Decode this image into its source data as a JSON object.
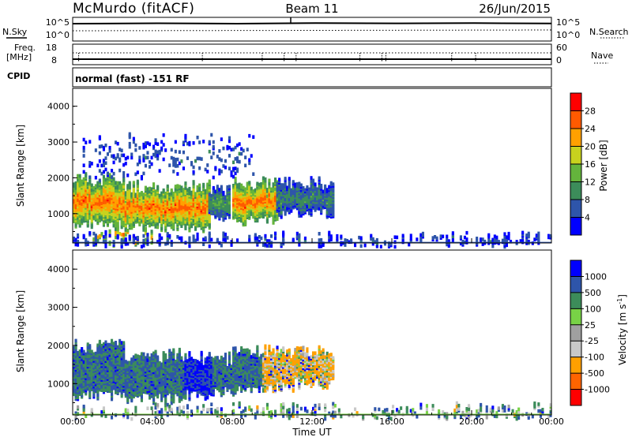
{
  "header": {
    "station": "McMurdo (fitACF)",
    "beam": "Beam 11",
    "date": "26/Jun/2015"
  },
  "strip_panels": {
    "nsky_label": "N.Sky",
    "nsky_ticks": [
      "10^5",
      "10^0"
    ],
    "nsearch_label": "N.Search",
    "nsearch_ticks": [
      "10^5",
      "10^0"
    ],
    "freq_label_1": "Freq.",
    "freq_label_2": "[MHz]",
    "freq_ticks": [
      "18",
      "8"
    ],
    "nave_label": "Nave",
    "nave_ticks": [
      "60",
      "0"
    ],
    "cpid_label": "CPID",
    "cpid_text": "normal (fast) -151 RF"
  },
  "colors": {
    "power_scale": [
      "#0000ff",
      "#2e55aa",
      "#3c8c5a",
      "#64b43c",
      "#c8d21e",
      "#ffa000",
      "#ff5a00",
      "#ff0000"
    ],
    "velocity_scale": [
      "#ff0000",
      "#ff6400",
      "#ffa000",
      "#c8c8c8",
      "#a0a0a0",
      "#78d246",
      "#3c8c5a",
      "#2e55aa",
      "#0000ff"
    ]
  },
  "chart_data": [
    {
      "type": "heatmap",
      "name": "power",
      "ylabel": "Slant Range [km]",
      "ylim": [
        180,
        4500
      ],
      "yticks": [
        "1000",
        "2000",
        "3000",
        "4000"
      ],
      "xlim": [
        0,
        24
      ],
      "xticks": [
        "00:00",
        "04:00",
        "08:00",
        "12:00",
        "16:00",
        "20:00",
        "00:00"
      ],
      "colorbar_label": "Power [dB]",
      "colorbar_ticks": [
        "4",
        "8",
        "12",
        "16",
        "20",
        "24",
        "28"
      ],
      "colorbar_range": [
        0,
        32
      ],
      "regions": [
        {
          "t": [
            0.0,
            2.6
          ],
          "r": [
            700,
            1900
          ],
          "level": 26
        },
        {
          "t": [
            2.6,
            6.8
          ],
          "r": [
            600,
            1700
          ],
          "level": 26
        },
        {
          "t": [
            6.8,
            7.8
          ],
          "r": [
            900,
            1600
          ],
          "level": 12
        },
        {
          "t": [
            8.0,
            10.2
          ],
          "r": [
            800,
            1800
          ],
          "level": 26
        },
        {
          "t": [
            10.2,
            13.0
          ],
          "r": [
            1000,
            1800
          ],
          "level": 10
        },
        {
          "t": [
            1.0,
            4.0
          ],
          "r": [
            200,
            400
          ],
          "level": 24
        },
        {
          "t": [
            0.0,
            24.0
          ],
          "r": [
            180,
            260
          ],
          "level": 6
        },
        {
          "t": [
            0.5,
            9.0
          ],
          "r": [
            2000,
            3100
          ],
          "level": 6
        }
      ]
    },
    {
      "type": "heatmap",
      "name": "velocity",
      "ylabel": "Slant Range [km]",
      "ylim": [
        180,
        4500
      ],
      "yticks": [
        "1000",
        "2000",
        "3000",
        "4000"
      ],
      "xlim": [
        0,
        24
      ],
      "xticks": [
        "00:00",
        "04:00",
        "08:00",
        "12:00",
        "16:00",
        "20:00",
        "00:00"
      ],
      "xlabel": "Time UT",
      "colorbar_label": "Velocity [m s",
      "colorbar_label_sup": "-1",
      "colorbar_label_end": "]",
      "colorbar_ticks": [
        "1000",
        "500",
        "100",
        "25",
        "-25",
        "-100",
        "-500",
        "-1000"
      ],
      "regions": [
        {
          "t": [
            0.0,
            2.6
          ],
          "r": [
            700,
            1950
          ],
          "level": 100
        },
        {
          "t": [
            2.6,
            5.6
          ],
          "r": [
            600,
            1700
          ],
          "level": 100
        },
        {
          "t": [
            5.6,
            7.0
          ],
          "r": [
            700,
            1600
          ],
          "level": 500
        },
        {
          "t": [
            7.0,
            8.0
          ],
          "r": [
            800,
            1600
          ],
          "level": 100
        },
        {
          "t": [
            8.0,
            9.5
          ],
          "r": [
            800,
            1800
          ],
          "level": 100
        },
        {
          "t": [
            9.5,
            11.0
          ],
          "r": [
            900,
            1800
          ],
          "level": -100
        },
        {
          "t": [
            11.0,
            13.0
          ],
          "r": [
            1000,
            1800
          ],
          "level": -100
        },
        {
          "t": [
            0.0,
            24.0
          ],
          "r": [
            180,
            260
          ],
          "level": 40
        }
      ]
    }
  ]
}
